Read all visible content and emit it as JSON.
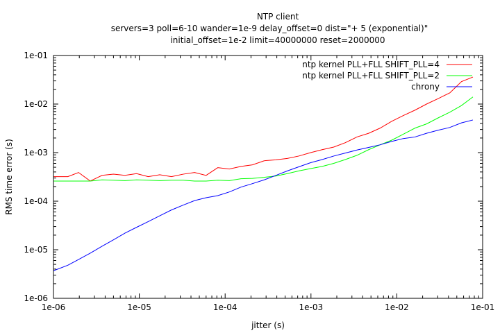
{
  "chart_data": {
    "type": "line",
    "title_lines": [
      "NTP client",
      "servers=3 poll=6-10 wander=1e-9 delay_offset=0 dist=\"+ 5 (exponential)\"",
      "initial_offset=1e-2 limit=40000000 reset=2000000"
    ],
    "xlabel": "jitter (s)",
    "ylabel": "RMS time error (s)",
    "x_scale": "log",
    "y_scale": "log",
    "xlim": [
      1e-06,
      0.1
    ],
    "ylim": [
      1e-06,
      0.1
    ],
    "x_ticks": [
      {
        "value": 1e-06,
        "label": "1e-06"
      },
      {
        "value": 1e-05,
        "label": "1e-05"
      },
      {
        "value": 0.0001,
        "label": "1e-04"
      },
      {
        "value": 0.001,
        "label": "1e-03"
      },
      {
        "value": 0.01,
        "label": "1e-02"
      },
      {
        "value": 0.1,
        "label": "1e-01"
      }
    ],
    "y_ticks": [
      {
        "value": 1e-06,
        "label": "1e-06"
      },
      {
        "value": 1e-05,
        "label": "1e-05"
      },
      {
        "value": 0.0001,
        "label": "1e-04"
      },
      {
        "value": 0.001,
        "label": "1e-03"
      },
      {
        "value": 0.01,
        "label": "1e-02"
      },
      {
        "value": 0.1,
        "label": "1e-01"
      }
    ],
    "grid": false,
    "legend_position": "top-right",
    "x": [
      1e-06,
      1.47e-06,
      1.96e-06,
      2.68e-06,
      3.68e-06,
      5e-06,
      6.8e-06,
      9.3e-06,
      1.27e-05,
      1.73e-05,
      2.37e-05,
      3.24e-05,
      4.41e-05,
      6e-05,
      8.2e-05,
      0.000112,
      0.000153,
      0.000208,
      0.000285,
      0.00039,
      0.00053,
      0.00072,
      0.00099,
      0.00135,
      0.00184,
      0.00251,
      0.00343,
      0.0047,
      0.0064,
      0.0087,
      0.0119,
      0.0163,
      0.0222,
      0.0304,
      0.0415,
      0.0566,
      0.077
    ],
    "series": [
      {
        "name": "ntp kernel PLL+FLL SHIFT_PLL=4",
        "color": "#ff0000",
        "values": [
          0.00032,
          0.00032,
          0.00039,
          0.00026,
          0.00034,
          0.00036,
          0.00034,
          0.00037,
          0.00032,
          0.00035,
          0.00032,
          0.00036,
          0.00039,
          0.00034,
          0.00049,
          0.00046,
          0.00052,
          0.00056,
          0.00068,
          0.00071,
          0.00076,
          0.00085,
          0.001,
          0.00115,
          0.0013,
          0.0016,
          0.0021,
          0.0025,
          0.0032,
          0.0044,
          0.0058,
          0.0075,
          0.01,
          0.013,
          0.017,
          0.029,
          0.036
        ]
      },
      {
        "name": "ntp kernel PLL+FLL SHIFT_PLL=2",
        "color": "#00ff00",
        "values": [
          0.00026,
          0.00026,
          0.00026,
          0.00026,
          0.000275,
          0.00027,
          0.000265,
          0.000275,
          0.00027,
          0.000265,
          0.00027,
          0.00027,
          0.00026,
          0.00026,
          0.00027,
          0.000265,
          0.00029,
          0.000295,
          0.00031,
          0.00033,
          0.00037,
          0.00042,
          0.00047,
          0.00052,
          0.0006,
          0.00072,
          0.00088,
          0.00115,
          0.00145,
          0.0018,
          0.0024,
          0.0032,
          0.0039,
          0.0052,
          0.0068,
          0.0093,
          0.014
        ]
      },
      {
        "name": "chrony",
        "color": "#0000ff",
        "values": [
          3.7e-06,
          4.8e-06,
          6.3e-06,
          8.5e-06,
          1.18e-05,
          1.6e-05,
          2.2e-05,
          2.9e-05,
          3.8e-05,
          5e-05,
          6.6e-05,
          8.3e-05,
          0.000103,
          0.000118,
          0.00013,
          0.000155,
          0.000195,
          0.00023,
          0.000275,
          0.00034,
          0.00042,
          0.00051,
          0.00062,
          0.00072,
          0.00085,
          0.00098,
          0.00113,
          0.00128,
          0.00145,
          0.0017,
          0.00195,
          0.0021,
          0.0025,
          0.0029,
          0.0033,
          0.0041,
          0.0047
        ]
      }
    ]
  }
}
